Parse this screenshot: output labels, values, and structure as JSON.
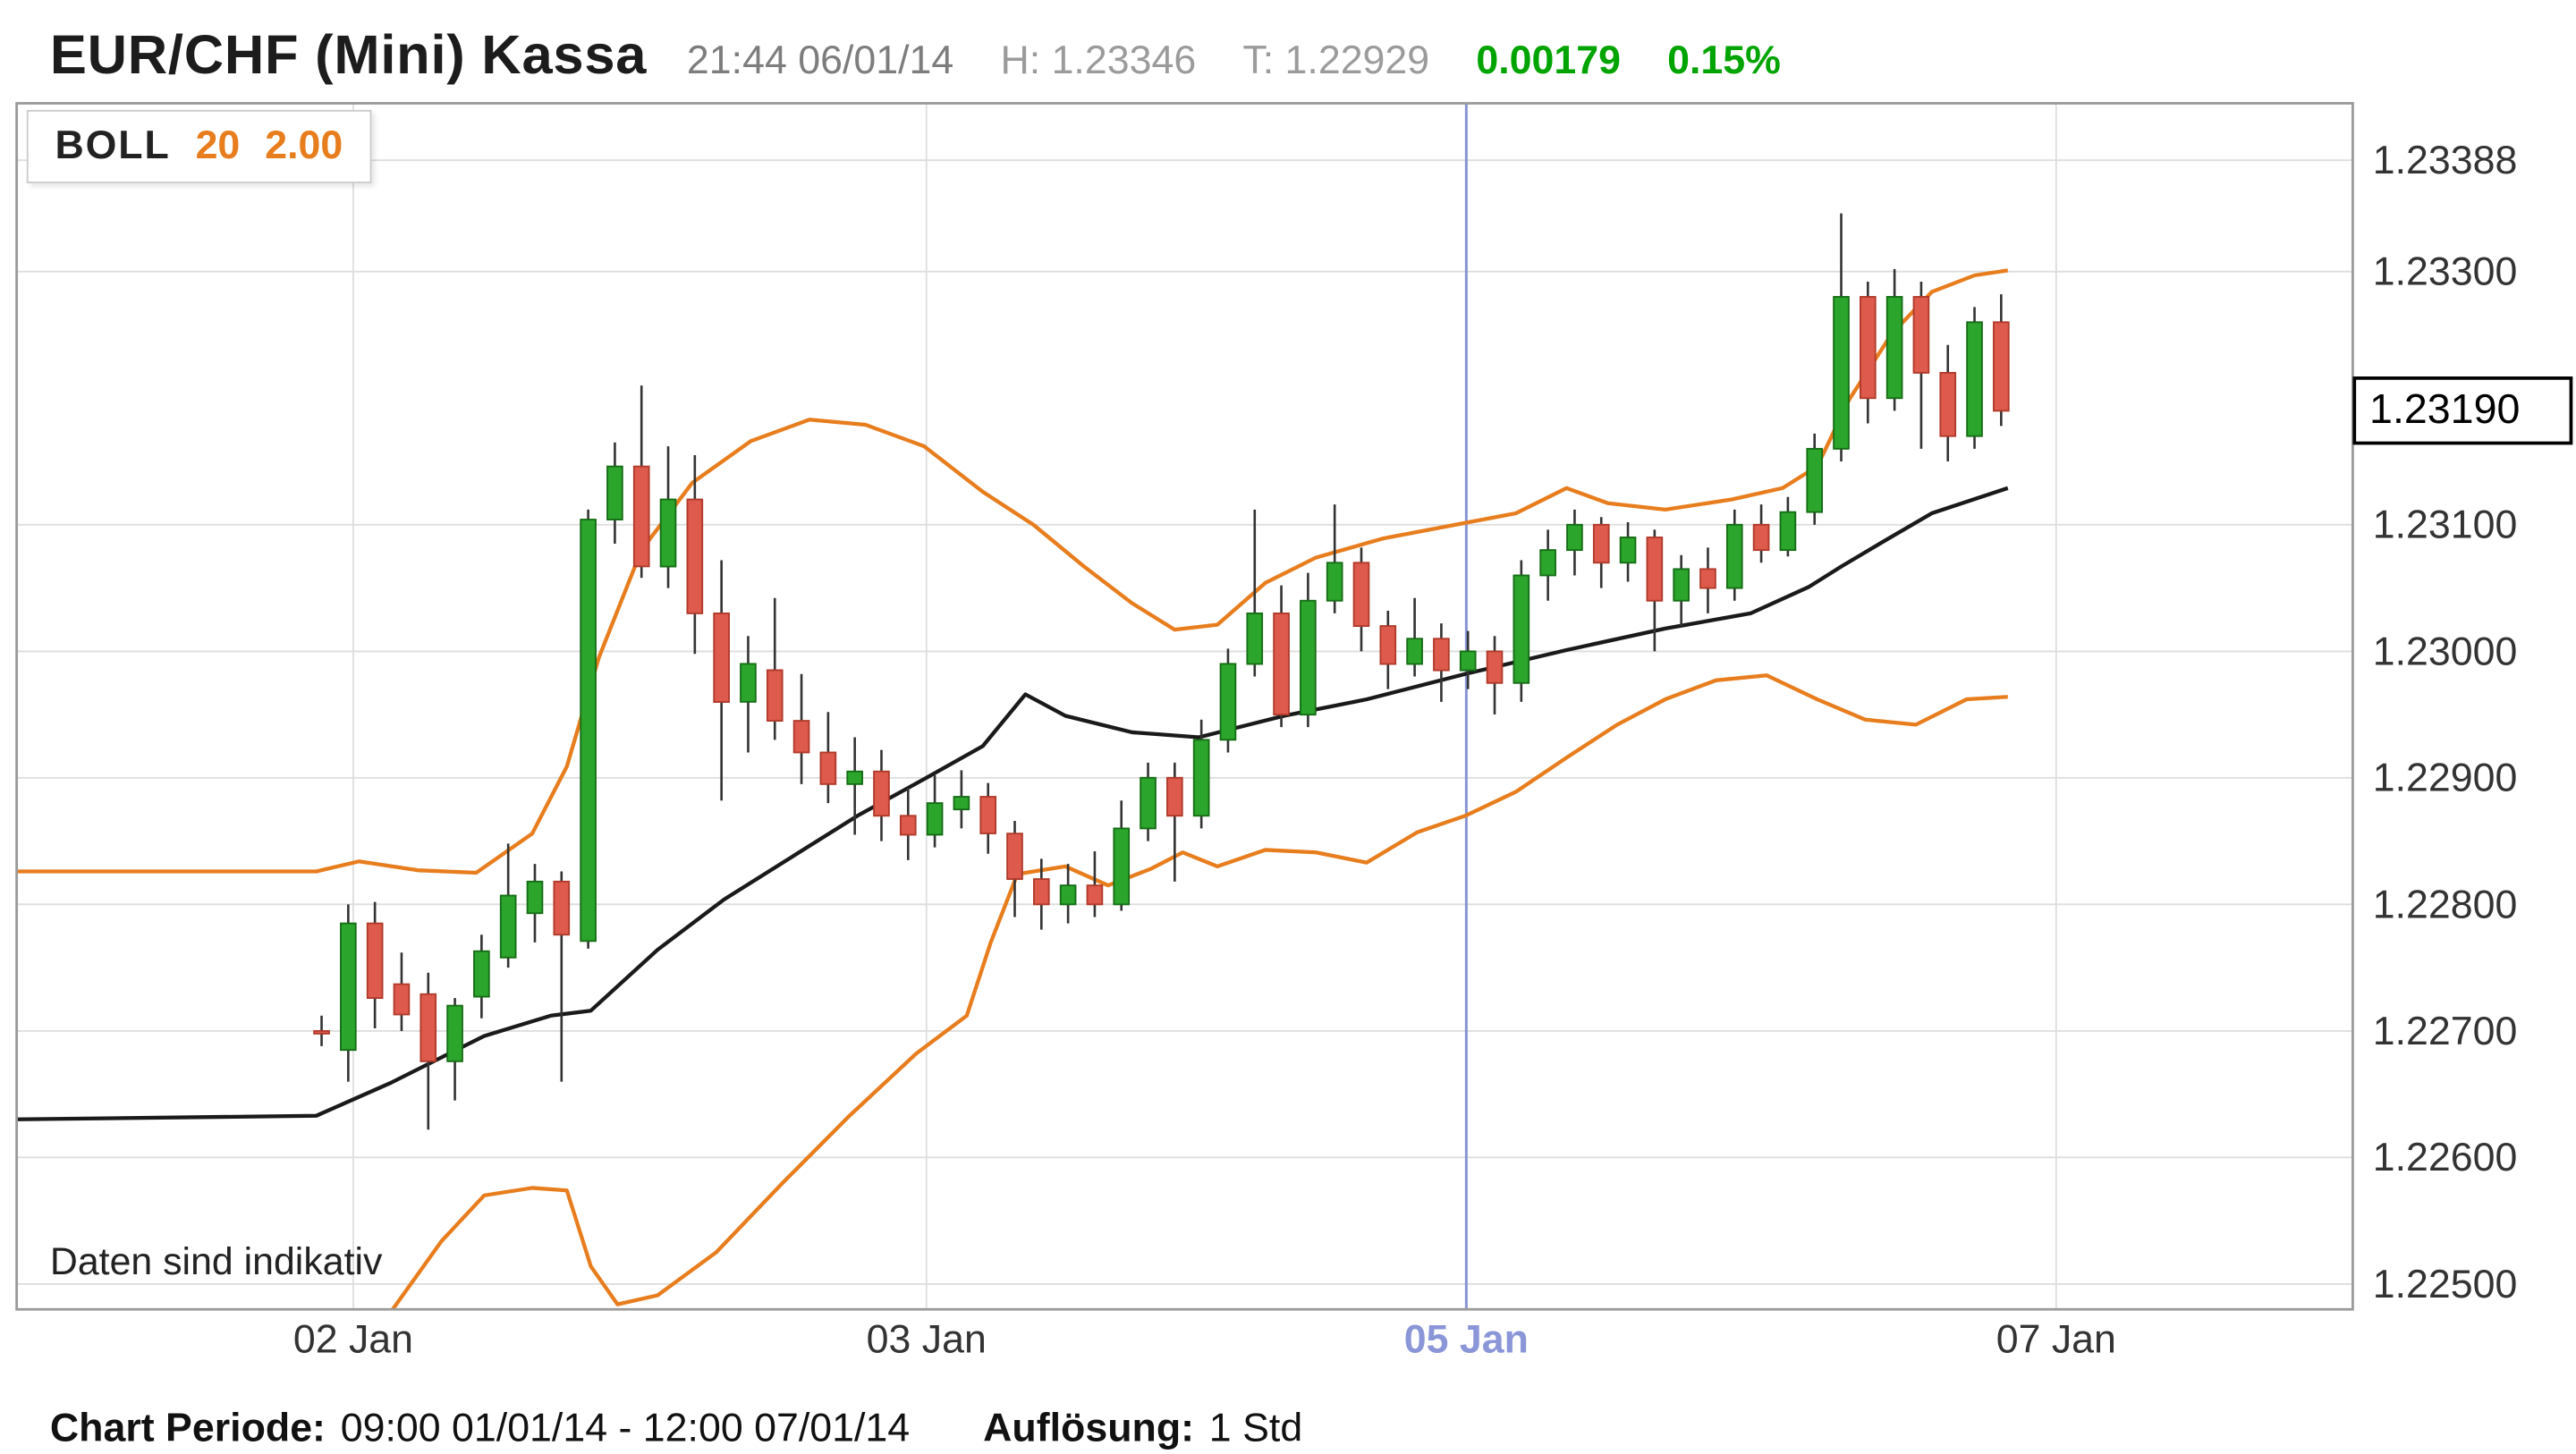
{
  "header": {
    "title": "EUR/CHF (Mini) Kassa",
    "timestamp": "21:44 06/01/14",
    "high": "H: 1.23346",
    "low": "T: 1.22929",
    "change_abs": "0.00179",
    "change_pct": "0.15%"
  },
  "legend": {
    "indicator": "BOLL",
    "period": "20",
    "deviation": "2.00"
  },
  "watermark": "Daten sind indikativ",
  "price_box": "1.23190",
  "footer": {
    "period_label": "Chart Periode:",
    "period_value": "09:00 01/01/14 - 12:00 07/01/14",
    "resolution_label": "Auflösung:",
    "resolution_value": "1 Std"
  },
  "colors": {
    "up": "#2ca52c",
    "up_border": "#156d15",
    "down": "#dd5a4c",
    "down_border": "#b03a2a",
    "wick": "#333333",
    "band": "#e87d1e",
    "sma": "#1a1a1a",
    "grid": "#dedede",
    "frame": "#9a9a9a",
    "highlight_line": "#8893d4",
    "highlight_label": "#8a96d8",
    "axis_text": "#333333",
    "positive": "#00a400"
  },
  "chart_data": {
    "type": "candlestick",
    "title": "EUR/CHF (Mini) Kassa",
    "resolution": "1 Std",
    "current_price": 1.2319,
    "y_range": [
      1.2248,
      1.23433
    ],
    "y_ticks": [
      1.23388,
      1.233,
      1.231,
      1.23,
      1.229,
      1.228,
      1.227,
      1.226,
      1.225
    ],
    "x_labels": [
      {
        "text": "02 Jan",
        "x": 212,
        "highlight": false
      },
      {
        "text": "03 Jan",
        "x": 556,
        "highlight": false
      },
      {
        "text": "05 Jan",
        "x": 880,
        "highlight": true
      },
      {
        "text": "07 Jan",
        "x": 1234,
        "highlight": false
      }
    ],
    "candles": [
      [
        1.227,
        1.22712,
        1.22688,
        1.22698
      ],
      [
        1.22685,
        1.228,
        1.2266,
        1.22785
      ],
      [
        1.22785,
        1.22802,
        1.22702,
        1.22726
      ],
      [
        1.22737,
        1.22762,
        1.227,
        1.22713
      ],
      [
        1.22729,
        1.22746,
        1.22622,
        1.22676
      ],
      [
        1.22676,
        1.22726,
        1.22645,
        1.2272
      ],
      [
        1.22727,
        1.22776,
        1.2271,
        1.22763
      ],
      [
        1.22758,
        1.22848,
        1.2275,
        1.22807
      ],
      [
        1.22793,
        1.22832,
        1.2277,
        1.22818
      ],
      [
        1.22818,
        1.22826,
        1.2266,
        1.22776
      ],
      [
        1.22771,
        1.23112,
        1.22765,
        1.23104
      ],
      [
        1.23104,
        1.23165,
        1.23085,
        1.23146
      ],
      [
        1.23146,
        1.2321,
        1.23058,
        1.23067
      ],
      [
        1.23067,
        1.23162,
        1.2305,
        1.2312
      ],
      [
        1.2312,
        1.23155,
        1.22998,
        1.2303
      ],
      [
        1.2303,
        1.23072,
        1.22882,
        1.2296
      ],
      [
        1.2296,
        1.23012,
        1.2292,
        1.2299
      ],
      [
        1.22985,
        1.23042,
        1.2293,
        1.22945
      ],
      [
        1.22945,
        1.22982,
        1.22895,
        1.2292
      ],
      [
        1.2292,
        1.22952,
        1.2288,
        1.22895
      ],
      [
        1.22895,
        1.22932,
        1.22855,
        1.22905
      ],
      [
        1.22905,
        1.22922,
        1.2285,
        1.2287
      ],
      [
        1.2287,
        1.22892,
        1.22835,
        1.22855
      ],
      [
        1.22855,
        1.22902,
        1.22845,
        1.2288
      ],
      [
        1.22875,
        1.22906,
        1.2286,
        1.22885
      ],
      [
        1.22885,
        1.22896,
        1.2284,
        1.22856
      ],
      [
        1.22856,
        1.22866,
        1.2279,
        1.2282
      ],
      [
        1.2282,
        1.22836,
        1.2278,
        1.228
      ],
      [
        1.228,
        1.22832,
        1.22785,
        1.22815
      ],
      [
        1.22815,
        1.22842,
        1.2279,
        1.228
      ],
      [
        1.228,
        1.22882,
        1.22795,
        1.2286
      ],
      [
        1.2286,
        1.22912,
        1.2285,
        1.229
      ],
      [
        1.229,
        1.22912,
        1.22818,
        1.2287
      ],
      [
        1.2287,
        1.22946,
        1.2286,
        1.2293
      ],
      [
        1.2293,
        1.23002,
        1.2292,
        1.2299
      ],
      [
        1.2299,
        1.23112,
        1.2298,
        1.2303
      ],
      [
        1.2303,
        1.23052,
        1.2294,
        1.2295
      ],
      [
        1.2295,
        1.23062,
        1.2294,
        1.2304
      ],
      [
        1.2304,
        1.23116,
        1.2303,
        1.2307
      ],
      [
        1.2307,
        1.23082,
        1.23,
        1.2302
      ],
      [
        1.2302,
        1.23032,
        1.2297,
        1.2299
      ],
      [
        1.2299,
        1.23042,
        1.2298,
        1.2301
      ],
      [
        1.2301,
        1.23022,
        1.2296,
        1.22985
      ],
      [
        1.22985,
        1.23016,
        1.2297,
        1.23
      ],
      [
        1.23,
        1.23012,
        1.2295,
        1.22975
      ],
      [
        1.22975,
        1.23072,
        1.2296,
        1.2306
      ],
      [
        1.2306,
        1.23096,
        1.2304,
        1.2308
      ],
      [
        1.2308,
        1.23112,
        1.2306,
        1.231
      ],
      [
        1.231,
        1.23106,
        1.2305,
        1.2307
      ],
      [
        1.2307,
        1.23102,
        1.23055,
        1.2309
      ],
      [
        1.2309,
        1.23096,
        1.23,
        1.2304
      ],
      [
        1.2304,
        1.23076,
        1.2302,
        1.23065
      ],
      [
        1.23065,
        1.23082,
        1.2303,
        1.2305
      ],
      [
        1.2305,
        1.23112,
        1.2304,
        1.231
      ],
      [
        1.231,
        1.23116,
        1.2307,
        1.2308
      ],
      [
        1.2308,
        1.23122,
        1.23075,
        1.2311
      ],
      [
        1.2311,
        1.23172,
        1.231,
        1.2316
      ],
      [
        1.2316,
        1.23346,
        1.2315,
        1.2328
      ],
      [
        1.2328,
        1.23292,
        1.2318,
        1.232
      ],
      [
        1.232,
        1.23302,
        1.2319,
        1.2328
      ],
      [
        1.2328,
        1.23292,
        1.2316,
        1.2322
      ],
      [
        1.2322,
        1.23242,
        1.2315,
        1.2317
      ],
      [
        1.2317,
        1.23272,
        1.2316,
        1.2326
      ],
      [
        1.2326,
        1.23282,
        1.23178,
        1.2319
      ]
    ],
    "bollinger": {
      "period": 20,
      "deviation": 2.0,
      "middle": [
        [
          -11.7,
          1.2263
        ],
        [
          -0.2,
          1.22633
        ],
        [
          2.6,
          1.22659
        ],
        [
          6.1,
          1.22696
        ],
        [
          8.6,
          1.22712
        ],
        [
          10.1,
          1.22716
        ],
        [
          12.6,
          1.22764
        ],
        [
          15.1,
          1.22804
        ],
        [
          17.6,
          1.22837
        ],
        [
          20.1,
          1.2287
        ],
        [
          22.6,
          1.22899
        ],
        [
          24.8,
          1.22925
        ],
        [
          26.4,
          1.22966
        ],
        [
          27.9,
          1.22949
        ],
        [
          30.4,
          1.22936
        ],
        [
          32.9,
          1.22932
        ],
        [
          36.1,
          1.22949
        ],
        [
          39.2,
          1.22962
        ],
        [
          42.9,
          1.22982
        ],
        [
          46.7,
          1.23001
        ],
        [
          50.4,
          1.23018
        ],
        [
          53.6,
          1.2303
        ],
        [
          55.8,
          1.23051
        ],
        [
          57.0,
          1.23067
        ],
        [
          58.6,
          1.23087
        ],
        [
          60.4,
          1.23109
        ],
        [
          63.25,
          1.23129
        ]
      ],
      "upper": [
        [
          -11.7,
          1.22826
        ],
        [
          -0.2,
          1.22826
        ],
        [
          1.4,
          1.22834
        ],
        [
          3.6,
          1.22827
        ],
        [
          5.8,
          1.22825
        ],
        [
          7.9,
          1.22856
        ],
        [
          9.2,
          1.22909
        ],
        [
          10.4,
          1.22995
        ],
        [
          12.0,
          1.2308
        ],
        [
          13.9,
          1.23133
        ],
        [
          16.1,
          1.23166
        ],
        [
          18.3,
          1.23183
        ],
        [
          20.4,
          1.23179
        ],
        [
          22.6,
          1.23162
        ],
        [
          24.8,
          1.23126
        ],
        [
          26.7,
          1.231
        ],
        [
          28.6,
          1.23067
        ],
        [
          30.4,
          1.23038
        ],
        [
          32.0,
          1.23017
        ],
        [
          33.6,
          1.23021
        ],
        [
          35.4,
          1.23054
        ],
        [
          37.3,
          1.23074
        ],
        [
          39.8,
          1.23089
        ],
        [
          42.3,
          1.23099
        ],
        [
          44.8,
          1.23109
        ],
        [
          46.7,
          1.23129
        ],
        [
          48.25,
          1.23117
        ],
        [
          50.4,
          1.23112
        ],
        [
          52.9,
          1.2312
        ],
        [
          54.8,
          1.23129
        ],
        [
          56.1,
          1.23146
        ],
        [
          57.3,
          1.23199
        ],
        [
          58.9,
          1.23251
        ],
        [
          60.4,
          1.23284
        ],
        [
          62.0,
          1.23297
        ],
        [
          63.25,
          1.23301
        ]
      ],
      "lower": [
        [
          1.2,
          1.2244
        ],
        [
          2.6,
          1.22478
        ],
        [
          4.5,
          1.22534
        ],
        [
          6.1,
          1.2257
        ],
        [
          7.9,
          1.22576
        ],
        [
          9.2,
          1.22574
        ],
        [
          10.1,
          1.22514
        ],
        [
          11.1,
          1.22484
        ],
        [
          12.6,
          1.22491
        ],
        [
          14.8,
          1.22525
        ],
        [
          17.3,
          1.2258
        ],
        [
          19.8,
          1.22633
        ],
        [
          22.3,
          1.22682
        ],
        [
          24.2,
          1.22712
        ],
        [
          25.1,
          1.2277
        ],
        [
          26.1,
          1.22824
        ],
        [
          27.9,
          1.2283
        ],
        [
          29.5,
          1.22815
        ],
        [
          31.1,
          1.22828
        ],
        [
          32.3,
          1.22841
        ],
        [
          33.6,
          1.2283
        ],
        [
          35.4,
          1.22843
        ],
        [
          37.3,
          1.22841
        ],
        [
          39.2,
          1.22833
        ],
        [
          41.1,
          1.22857
        ],
        [
          42.9,
          1.2287
        ],
        [
          44.8,
          1.22889
        ],
        [
          46.7,
          1.22916
        ],
        [
          48.6,
          1.22942
        ],
        [
          50.4,
          1.22962
        ],
        [
          52.3,
          1.22977
        ],
        [
          54.2,
          1.22981
        ],
        [
          56.1,
          1.22962
        ],
        [
          57.9,
          1.22946
        ],
        [
          59.8,
          1.22942
        ],
        [
          61.7,
          1.22962
        ],
        [
          63.25,
          1.22964
        ]
      ]
    }
  }
}
